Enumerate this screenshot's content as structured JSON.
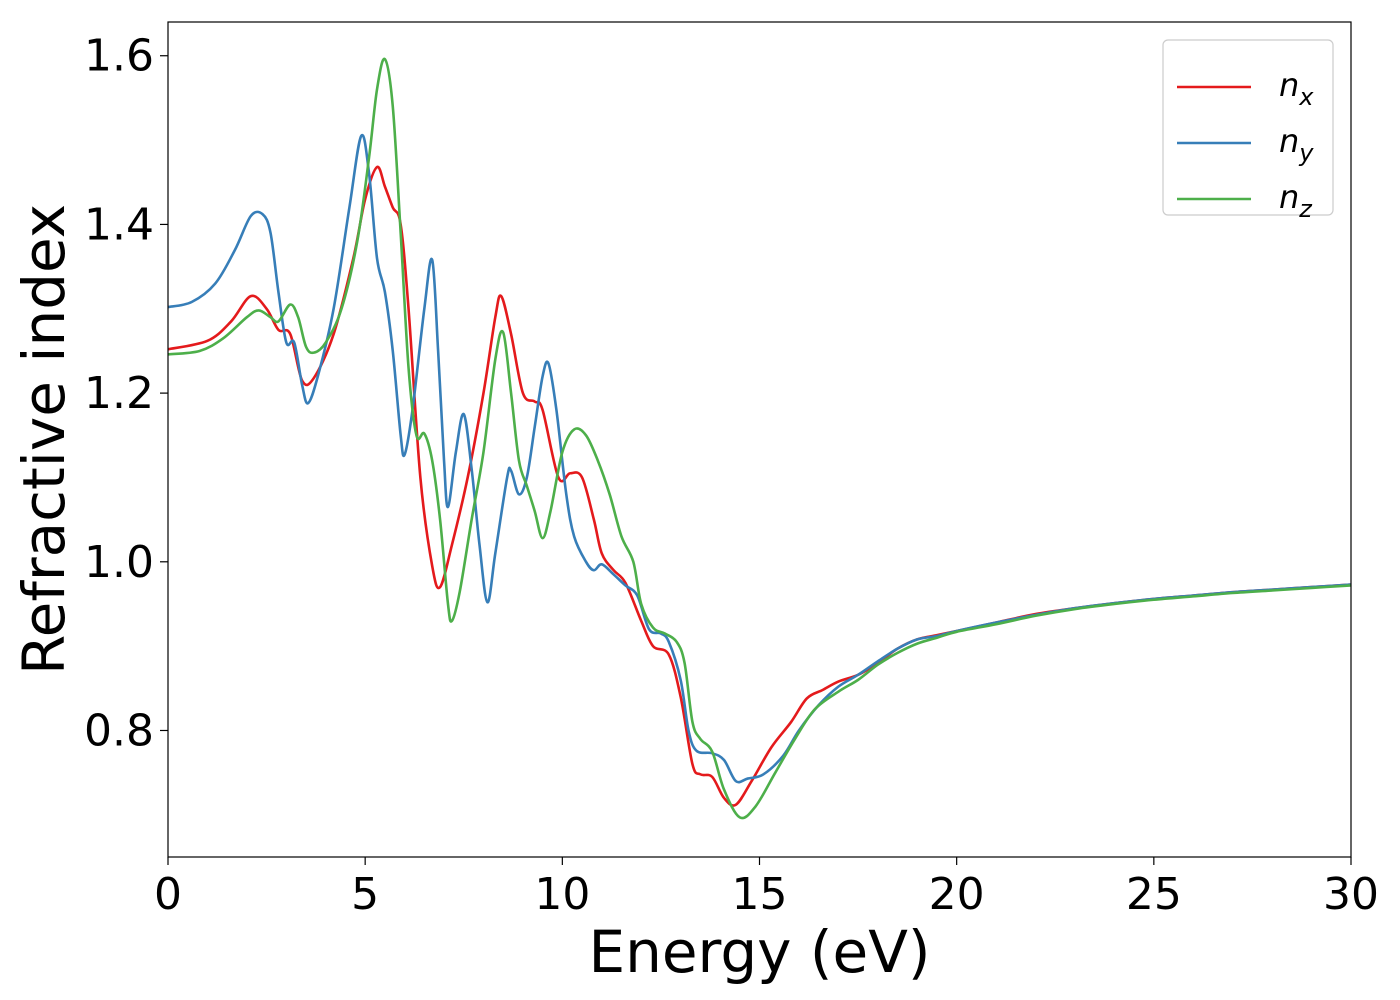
{
  "chart_data": {
    "type": "line",
    "title": "",
    "xlabel": "Energy (eV)",
    "ylabel": "Refractive index",
    "xlim": [
      0,
      30
    ],
    "ylim": [
      0.65,
      1.64
    ],
    "xticks": [
      0,
      5,
      10,
      15,
      20,
      25,
      30
    ],
    "yticks": [
      0.8,
      1.0,
      1.2,
      1.4,
      1.6
    ],
    "grid": false,
    "legend_position": "top-right",
    "series": [
      {
        "name": "n_x",
        "legend_base": "n",
        "legend_sub": "x",
        "color": "#e41a1c",
        "points": [
          [
            0,
            1.252
          ],
          [
            1,
            1.262
          ],
          [
            1.6,
            1.285
          ],
          [
            2.1,
            1.315
          ],
          [
            2.5,
            1.3
          ],
          [
            2.8,
            1.275
          ],
          [
            3.1,
            1.27
          ],
          [
            3.4,
            1.215
          ],
          [
            3.7,
            1.218
          ],
          [
            4.2,
            1.27
          ],
          [
            4.7,
            1.36
          ],
          [
            5.0,
            1.43
          ],
          [
            5.3,
            1.468
          ],
          [
            5.5,
            1.445
          ],
          [
            5.7,
            1.42
          ],
          [
            5.9,
            1.4
          ],
          [
            6.1,
            1.3
          ],
          [
            6.4,
            1.1
          ],
          [
            6.7,
            0.995
          ],
          [
            6.9,
            0.97
          ],
          [
            7.2,
            1.02
          ],
          [
            7.6,
            1.1
          ],
          [
            8.0,
            1.2
          ],
          [
            8.3,
            1.29
          ],
          [
            8.45,
            1.315
          ],
          [
            8.7,
            1.27
          ],
          [
            9.0,
            1.2
          ],
          [
            9.3,
            1.19
          ],
          [
            9.5,
            1.18
          ],
          [
            9.9,
            1.1
          ],
          [
            10.2,
            1.105
          ],
          [
            10.5,
            1.1
          ],
          [
            10.8,
            1.05
          ],
          [
            11.0,
            1.01
          ],
          [
            11.3,
            0.99
          ],
          [
            11.6,
            0.975
          ],
          [
            12.0,
            0.93
          ],
          [
            12.3,
            0.9
          ],
          [
            12.7,
            0.89
          ],
          [
            13.0,
            0.84
          ],
          [
            13.3,
            0.76
          ],
          [
            13.5,
            0.748
          ],
          [
            13.8,
            0.745
          ],
          [
            14.1,
            0.72
          ],
          [
            14.4,
            0.712
          ],
          [
            14.8,
            0.74
          ],
          [
            15.3,
            0.78
          ],
          [
            15.8,
            0.81
          ],
          [
            16.2,
            0.838
          ],
          [
            16.6,
            0.848
          ],
          [
            17.0,
            0.858
          ],
          [
            17.5,
            0.866
          ],
          [
            18.0,
            0.88
          ],
          [
            18.5,
            0.897
          ],
          [
            19.0,
            0.908
          ],
          [
            19.5,
            0.913
          ],
          [
            20.0,
            0.918
          ],
          [
            21,
            0.928
          ],
          [
            22,
            0.938
          ],
          [
            23,
            0.945
          ],
          [
            24,
            0.951
          ],
          [
            25,
            0.956
          ],
          [
            26,
            0.96
          ],
          [
            27,
            0.964
          ],
          [
            28,
            0.967
          ],
          [
            29,
            0.97
          ],
          [
            30,
            0.973
          ]
        ]
      },
      {
        "name": "n_y",
        "legend_base": "n",
        "legend_sub": "y",
        "color": "#377eb8",
        "points": [
          [
            0,
            1.302
          ],
          [
            0.6,
            1.308
          ],
          [
            1.2,
            1.33
          ],
          [
            1.7,
            1.37
          ],
          [
            2.1,
            1.41
          ],
          [
            2.4,
            1.412
          ],
          [
            2.6,
            1.39
          ],
          [
            2.8,
            1.32
          ],
          [
            3.0,
            1.26
          ],
          [
            3.2,
            1.26
          ],
          [
            3.4,
            1.21
          ],
          [
            3.55,
            1.188
          ],
          [
            3.8,
            1.22
          ],
          [
            4.2,
            1.3
          ],
          [
            4.6,
            1.42
          ],
          [
            4.9,
            1.505
          ],
          [
            5.1,
            1.46
          ],
          [
            5.3,
            1.36
          ],
          [
            5.5,
            1.32
          ],
          [
            5.7,
            1.25
          ],
          [
            5.9,
            1.15
          ],
          [
            6.0,
            1.127
          ],
          [
            6.2,
            1.18
          ],
          [
            6.5,
            1.3
          ],
          [
            6.7,
            1.358
          ],
          [
            6.85,
            1.25
          ],
          [
            7.0,
            1.12
          ],
          [
            7.1,
            1.065
          ],
          [
            7.3,
            1.13
          ],
          [
            7.5,
            1.175
          ],
          [
            7.7,
            1.11
          ],
          [
            7.9,
            1.02
          ],
          [
            8.1,
            0.952
          ],
          [
            8.3,
            1.01
          ],
          [
            8.6,
            1.1
          ],
          [
            8.7,
            1.108
          ],
          [
            8.9,
            1.08
          ],
          [
            9.1,
            1.1
          ],
          [
            9.3,
            1.16
          ],
          [
            9.5,
            1.22
          ],
          [
            9.65,
            1.235
          ],
          [
            9.85,
            1.18
          ],
          [
            10.1,
            1.08
          ],
          [
            10.3,
            1.03
          ],
          [
            10.6,
            1.0
          ],
          [
            10.8,
            0.99
          ],
          [
            11.0,
            0.997
          ],
          [
            11.3,
            0.985
          ],
          [
            11.6,
            0.972
          ],
          [
            11.9,
            0.96
          ],
          [
            12.2,
            0.92
          ],
          [
            12.5,
            0.915
          ],
          [
            12.7,
            0.905
          ],
          [
            13.0,
            0.86
          ],
          [
            13.2,
            0.8
          ],
          [
            13.4,
            0.776
          ],
          [
            13.8,
            0.773
          ],
          [
            14.1,
            0.765
          ],
          [
            14.4,
            0.74
          ],
          [
            14.7,
            0.743
          ],
          [
            15.1,
            0.748
          ],
          [
            15.6,
            0.77
          ],
          [
            16.0,
            0.8
          ],
          [
            16.5,
            0.83
          ],
          [
            17.0,
            0.852
          ],
          [
            17.5,
            0.866
          ],
          [
            18.0,
            0.882
          ],
          [
            18.5,
            0.897
          ],
          [
            19.0,
            0.908
          ],
          [
            19.5,
            0.912
          ],
          [
            20.0,
            0.918
          ],
          [
            21,
            0.928
          ],
          [
            22,
            0.937
          ],
          [
            23,
            0.945
          ],
          [
            24,
            0.951
          ],
          [
            25,
            0.956
          ],
          [
            26,
            0.96
          ],
          [
            27,
            0.964
          ],
          [
            28,
            0.967
          ],
          [
            29,
            0.97
          ],
          [
            30,
            0.973
          ]
        ]
      },
      {
        "name": "n_z",
        "legend_base": "n",
        "legend_sub": "z",
        "color": "#4daf4a",
        "points": [
          [
            0,
            1.246
          ],
          [
            0.8,
            1.25
          ],
          [
            1.4,
            1.265
          ],
          [
            2.0,
            1.29
          ],
          [
            2.3,
            1.298
          ],
          [
            2.6,
            1.29
          ],
          [
            2.8,
            1.285
          ],
          [
            3.1,
            1.305
          ],
          [
            3.3,
            1.29
          ],
          [
            3.5,
            1.255
          ],
          [
            3.7,
            1.248
          ],
          [
            4.0,
            1.26
          ],
          [
            4.4,
            1.3
          ],
          [
            4.8,
            1.38
          ],
          [
            5.1,
            1.48
          ],
          [
            5.3,
            1.56
          ],
          [
            5.5,
            1.596
          ],
          [
            5.7,
            1.54
          ],
          [
            5.9,
            1.39
          ],
          [
            6.1,
            1.23
          ],
          [
            6.3,
            1.15
          ],
          [
            6.5,
            1.152
          ],
          [
            6.7,
            1.12
          ],
          [
            6.9,
            1.05
          ],
          [
            7.1,
            0.95
          ],
          [
            7.2,
            0.93
          ],
          [
            7.4,
            0.965
          ],
          [
            7.7,
            1.05
          ],
          [
            8.0,
            1.13
          ],
          [
            8.3,
            1.24
          ],
          [
            8.5,
            1.272
          ],
          [
            8.7,
            1.2
          ],
          [
            8.9,
            1.12
          ],
          [
            9.1,
            1.09
          ],
          [
            9.3,
            1.06
          ],
          [
            9.5,
            1.028
          ],
          [
            9.7,
            1.06
          ],
          [
            10.0,
            1.13
          ],
          [
            10.3,
            1.157
          ],
          [
            10.6,
            1.15
          ],
          [
            10.9,
            1.12
          ],
          [
            11.2,
            1.08
          ],
          [
            11.5,
            1.03
          ],
          [
            11.8,
            1.0
          ],
          [
            12.0,
            0.95
          ],
          [
            12.3,
            0.922
          ],
          [
            12.6,
            0.915
          ],
          [
            12.9,
            0.905
          ],
          [
            13.1,
            0.88
          ],
          [
            13.3,
            0.81
          ],
          [
            13.5,
            0.79
          ],
          [
            13.8,
            0.775
          ],
          [
            14.1,
            0.73
          ],
          [
            14.5,
            0.697
          ],
          [
            14.9,
            0.71
          ],
          [
            15.4,
            0.75
          ],
          [
            15.9,
            0.79
          ],
          [
            16.4,
            0.825
          ],
          [
            17.0,
            0.846
          ],
          [
            17.5,
            0.86
          ],
          [
            18.0,
            0.878
          ],
          [
            18.5,
            0.892
          ],
          [
            19.0,
            0.903
          ],
          [
            19.5,
            0.91
          ],
          [
            20.0,
            0.917
          ],
          [
            21,
            0.926
          ],
          [
            22,
            0.936
          ],
          [
            23,
            0.944
          ],
          [
            24,
            0.95
          ],
          [
            25,
            0.955
          ],
          [
            26,
            0.959
          ],
          [
            27,
            0.963
          ],
          [
            28,
            0.966
          ],
          [
            29,
            0.969
          ],
          [
            30,
            0.972
          ]
        ]
      }
    ]
  }
}
